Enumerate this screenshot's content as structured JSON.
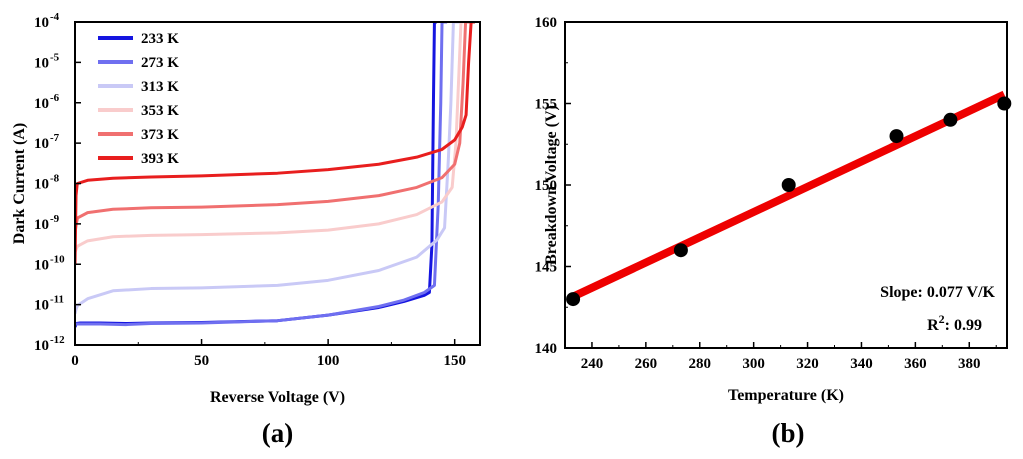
{
  "chart_data": [
    {
      "type": "line",
      "panel_label": "(a)",
      "xlabel": "Reverse Voltage (V)",
      "ylabel": "Dark Current (A)",
      "yscale": "log",
      "xlim": [
        0,
        160
      ],
      "ylim": [
        1e-12,
        0.0001
      ],
      "xticks": [
        0,
        50,
        100,
        150
      ],
      "xtick_labels": [
        "0",
        "50",
        "100",
        "150"
      ],
      "yticks": [
        -12,
        -11,
        -10,
        -9,
        -8,
        -7,
        -6,
        -5,
        -4
      ],
      "ytick_base": "10",
      "ytick_exponents": [
        "-12",
        "-11",
        "-10",
        "-9",
        "-8",
        "-7",
        "-6",
        "-5",
        "-4"
      ],
      "legend_position": "top-left",
      "series": [
        {
          "name": "233 K",
          "color": "#1515e0",
          "x": [
            0,
            0.5,
            2,
            10,
            20,
            30,
            50,
            80,
            100,
            120,
            130,
            138,
            140,
            141,
            141.6,
            142,
            142.5,
            143
          ],
          "y": [
            2.8e-12,
            3.4e-12,
            3.5e-12,
            3.5e-12,
            3.4e-12,
            3.5e-12,
            3.6e-12,
            4e-12,
            5.5e-12,
            8.5e-12,
            1.2e-11,
            1.7e-11,
            2e-11,
            3e-10,
            1e-06,
            0.0001,
            0.0001,
            0.0001
          ]
        },
        {
          "name": "273 K",
          "color": "#6f6ff0",
          "x": [
            0,
            0.5,
            2,
            10,
            20,
            30,
            50,
            80,
            100,
            120,
            130,
            138,
            142,
            143.5,
            144.5,
            145,
            145.5,
            147
          ],
          "y": [
            3.2e-12,
            3.3e-12,
            3.3e-12,
            3.3e-12,
            3.2e-12,
            3.4e-12,
            3.5e-12,
            4e-12,
            5.5e-12,
            9e-12,
            1.3e-11,
            2e-11,
            3e-11,
            3e-09,
            1e-06,
            0.0001,
            0.0001,
            0.0001
          ]
        },
        {
          "name": "313 K",
          "color": "#c9c9f6",
          "x": [
            0,
            0.5,
            1,
            5,
            15,
            30,
            50,
            80,
            100,
            120,
            135,
            143,
            146,
            147.5,
            148.5,
            149.5,
            150.5,
            152
          ],
          "y": [
            6e-12,
            8e-12,
            9.5e-12,
            1.4e-11,
            2.2e-11,
            2.5e-11,
            2.6e-11,
            3e-11,
            4e-11,
            7e-11,
            1.5e-10,
            4e-10,
            8e-10,
            4e-08,
            1e-06,
            0.0001,
            0.0001,
            0.0001
          ]
        },
        {
          "name": "353 K",
          "color": "#f9cccc",
          "x": [
            0,
            0.5,
            1,
            5,
            15,
            30,
            50,
            80,
            100,
            120,
            135,
            145,
            149,
            150.5,
            151.5,
            152.5,
            153.5,
            155
          ],
          "y": [
            2e-10,
            2.4e-10,
            2.8e-10,
            3.8e-10,
            4.8e-10,
            5.2e-10,
            5.4e-10,
            6e-10,
            7e-10,
            1e-09,
            1.7e-09,
            3.5e-09,
            8e-09,
            1e-07,
            3e-06,
            0.0001,
            0.0001,
            0.0001
          ]
        },
        {
          "name": "373 K",
          "color": "#f07070",
          "x": [
            0,
            0.5,
            1,
            5,
            15,
            30,
            50,
            80,
            100,
            120,
            135,
            145,
            150,
            152,
            153.3,
            154.3,
            155.3,
            157
          ],
          "y": [
            6e-10,
            1e-09,
            1.4e-09,
            1.9e-09,
            2.3e-09,
            2.5e-09,
            2.6e-09,
            3e-09,
            3.6e-09,
            5e-09,
            8e-09,
            1.4e-08,
            3e-08,
            1e-07,
            3e-06,
            0.0001,
            0.0001,
            0.0001
          ]
        },
        {
          "name": "393 K",
          "color": "#e81e1e",
          "x": [
            0,
            0.4,
            0.8,
            1,
            5,
            15,
            30,
            50,
            80,
            100,
            120,
            135,
            145,
            150,
            153,
            154.5,
            155.5,
            156.5,
            158
          ],
          "y": [
            1e-10,
            5e-09,
            9e-09,
            1e-08,
            1.2e-08,
            1.35e-08,
            1.45e-08,
            1.55e-08,
            1.8e-08,
            2.2e-08,
            3e-08,
            4.5e-08,
            7e-08,
            1.2e-07,
            2.5e-07,
            5e-07,
            1e-05,
            0.0001,
            0.0001
          ]
        }
      ]
    },
    {
      "type": "scatter",
      "panel_label": "(b)",
      "xlabel": "Temperature (K)",
      "ylabel": "Breakdown Voltage (V)",
      "xlim": [
        230,
        394
      ],
      "ylim": [
        140,
        160
      ],
      "xticks": [
        240,
        260,
        280,
        300,
        320,
        340,
        360,
        380
      ],
      "xtick_labels": [
        "240",
        "260",
        "280",
        "300",
        "320",
        "340",
        "360",
        "380"
      ],
      "yticks": [
        140,
        145,
        150,
        155,
        160
      ],
      "ytick_labels": [
        "140",
        "145",
        "150",
        "155",
        "160"
      ],
      "series": [
        {
          "name": "data",
          "color": "#000000",
          "x": [
            233,
            273,
            313,
            353,
            373,
            393
          ],
          "y": [
            143,
            146,
            150,
            153,
            154,
            155
          ]
        }
      ],
      "fit": {
        "color": "#ee0000",
        "x": [
          233,
          393
        ],
        "y": [
          143.15,
          155.55
        ]
      },
      "annotations": {
        "slope": "Slope: 0.077 V/K",
        "r2_base": "R",
        "r2_sup": "2",
        "r2_value": ": 0.99"
      }
    }
  ]
}
